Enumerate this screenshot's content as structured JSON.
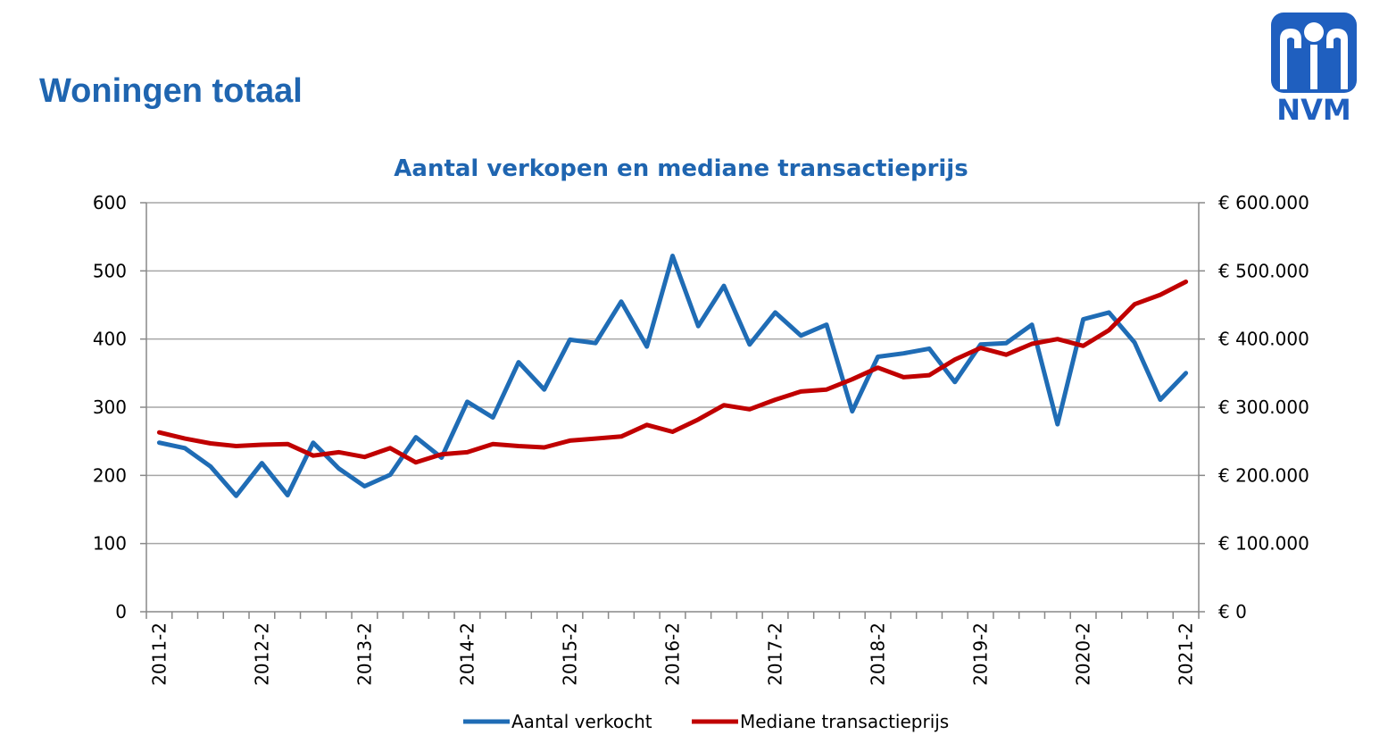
{
  "page": {
    "title": "Woningen totaal"
  },
  "logo": {
    "text": "NVM",
    "icon": "nvm-logo-icon",
    "color": "#1f5fbf"
  },
  "colors": {
    "title": "#1f65b0",
    "series_sales": "#1f6cb5",
    "series_price": "#c00000",
    "grid": "#a6a6a6",
    "axis": "#888888"
  },
  "chart_data": {
    "type": "line",
    "title": "Aantal verkopen en mediane transactieprijs",
    "x_ticks": [
      "2011-2",
      "2012-2",
      "2013-2",
      "2014-2",
      "2015-2",
      "2016-2",
      "2017-2",
      "2018-2",
      "2019-2",
      "2020-2",
      "2021-2"
    ],
    "categories": [
      "2011-2",
      "2011-3",
      "2011-4",
      "2012-1",
      "2012-2",
      "2012-3",
      "2012-4",
      "2013-1",
      "2013-2",
      "2013-3",
      "2013-4",
      "2014-1",
      "2014-2",
      "2014-3",
      "2014-4",
      "2015-1",
      "2015-2",
      "2015-3",
      "2015-4",
      "2016-1",
      "2016-2",
      "2016-3",
      "2016-4",
      "2017-1",
      "2017-2",
      "2017-3",
      "2017-4",
      "2018-1",
      "2018-2",
      "2018-3",
      "2018-4",
      "2019-1",
      "2019-2",
      "2019-3",
      "2019-4",
      "2020-1",
      "2020-2",
      "2020-3",
      "2020-4",
      "2021-1",
      "2021-2"
    ],
    "y_left": {
      "min": 0,
      "max": 600,
      "ticks": [
        0,
        100,
        200,
        300,
        400,
        500,
        600
      ],
      "tick_labels": [
        "0",
        "100",
        "200",
        "300",
        "400",
        "500",
        "600"
      ]
    },
    "y_right": {
      "min": 0,
      "max": 600000,
      "ticks": [
        0,
        100000,
        200000,
        300000,
        400000,
        500000,
        600000
      ],
      "tick_labels": [
        "€ 0",
        "€ 100.000",
        "€ 200.000",
        "€ 300.000",
        "€ 400.000",
        "€ 500.000",
        "€ 600.000"
      ]
    },
    "grid": true,
    "legend_position": "bottom",
    "series": [
      {
        "name": "Aantal verkocht",
        "axis": "left",
        "values": [
          248,
          240,
          213,
          170,
          218,
          171,
          248,
          210,
          184,
          201,
          256,
          226,
          308,
          285,
          366,
          326,
          399,
          394,
          455,
          389,
          522,
          419,
          478,
          392,
          439,
          405,
          421,
          294,
          374,
          379,
          386,
          337,
          392,
          394,
          421,
          275,
          429,
          439,
          395,
          311,
          350
        ]
      },
      {
        "name": "Mediane transactieprijs",
        "axis": "right",
        "values": [
          263000,
          254000,
          247000,
          243000,
          245000,
          246000,
          229000,
          234000,
          227000,
          240000,
          219000,
          231000,
          234000,
          246000,
          243000,
          241000,
          251000,
          254000,
          257000,
          274000,
          264000,
          282000,
          303000,
          297000,
          311000,
          323000,
          326000,
          341000,
          358000,
          344000,
          347000,
          370000,
          387000,
          377000,
          393000,
          400000,
          390000,
          413000,
          451000,
          465000,
          484000
        ]
      }
    ]
  }
}
